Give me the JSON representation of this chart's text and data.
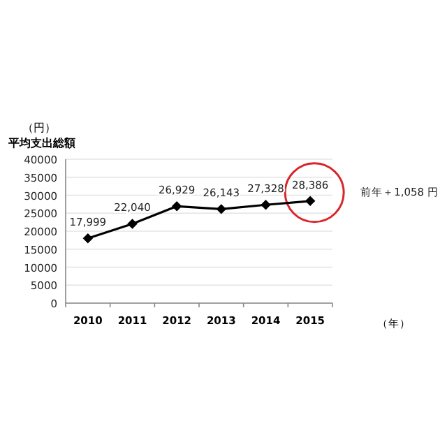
{
  "chart_data": {
    "type": "line",
    "ylabel": "平均支出総額",
    "xlabel": "（年）",
    "categories": [
      "2010",
      "2011",
      "2012",
      "2013",
      "2014",
      "2015"
    ],
    "series": [
      {
        "color": "#000000",
        "values": [
          17999,
          22040,
          26929,
          26143,
          27328,
          28386
        ],
        "value_labels": [
          "17,999",
          "22,040",
          "26,929",
          "26,143",
          "27,328",
          "28,386"
        ]
      }
    ],
    "ylim": [
      0,
      40000
    ],
    "yticks": [
      0,
      5000,
      10000,
      15000,
      20000,
      25000,
      30000,
      35000,
      40000
    ],
    "grid": "y",
    "marker": "diamond",
    "line_style": "solid",
    "annotations": [
      "（円）",
      "前年＋1,058 円"
    ]
  }
}
